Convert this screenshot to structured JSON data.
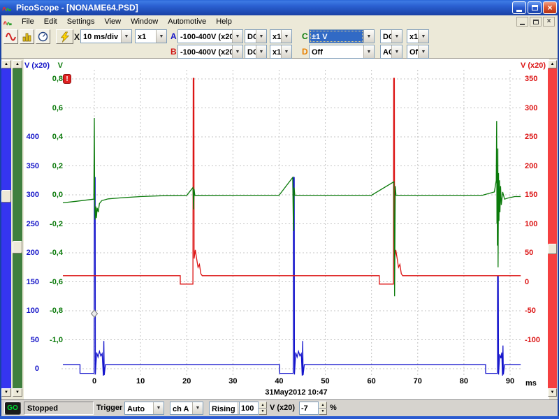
{
  "window": {
    "title": "PicoScope - [NONAME64.PSD]"
  },
  "menu": {
    "items": [
      "File",
      "Edit",
      "Settings",
      "View",
      "Window",
      "Automotive",
      "Help"
    ]
  },
  "icons": {
    "close": "×",
    "dropdown": "▼",
    "spin_up": "▲",
    "spin_down": "▼",
    "scroll_up": "▲",
    "scroll_down": "▼",
    "warning": "!",
    "capture_suffix": "X"
  },
  "toolbar": {
    "timebase": "10 ms/div",
    "timebase_mult": "x1",
    "channels": [
      {
        "id": "A",
        "color": "#1414c8",
        "range": "-100-400V (x20)",
        "coupling": "DC",
        "probe": "x1",
        "selected": false
      },
      {
        "id": "B",
        "color": "#d01414",
        "range": "-100-400V (x20)",
        "coupling": "DC",
        "probe": "x1",
        "selected": false
      },
      {
        "id": "C",
        "color": "#0a7a0a",
        "range": "±1 V",
        "coupling": "DC",
        "probe": "x1",
        "selected": true
      },
      {
        "id": "D",
        "color": "#e88000",
        "range": "Off",
        "coupling": "AC",
        "probe": "Off",
        "selected": false
      }
    ]
  },
  "statusbar": {
    "go_label": "GO",
    "state": "Stopped",
    "trigger_label": "Trigger",
    "trigger_mode": "Auto",
    "trigger_source": "ch A",
    "trigger_edge": "Rising",
    "trigger_level": "100",
    "trigger_level_unit": "V (x20)",
    "pre_trigger": "-7",
    "pre_trigger_unit": "%"
  },
  "plot": {
    "date_label": "31May2012  10:47"
  },
  "chart_data": {
    "type": "line",
    "title": "",
    "x_axis": {
      "label": "ms",
      "ticks": [
        0,
        10,
        20,
        30,
        40,
        50,
        60,
        70,
        80,
        90
      ],
      "range": [
        -6.8,
        92.3
      ]
    },
    "axes": {
      "left_blue": {
        "label": "V (x20)",
        "color": "#1414c8",
        "tick_labels": [
          "400",
          "350",
          "300",
          "250",
          "200",
          "150",
          "100",
          "50",
          "0"
        ],
        "tick_values": [
          400,
          350,
          300,
          250,
          200,
          150,
          100,
          50,
          0
        ],
        "value_at_div0": 500,
        "units_per_div": 50
      },
      "left_green": {
        "label": "V",
        "color": "#0a7a0a",
        "tick_labels": [
          "0,8",
          "0,6",
          "0,4",
          "0,2",
          "0,0",
          "-0,2",
          "-0,4",
          "-0,6",
          "-0,8",
          "-1,0"
        ],
        "tick_values": [
          0.8,
          0.6,
          0.4,
          0.2,
          0,
          -0.2,
          -0.4,
          -0.6,
          -0.8,
          -1.0
        ],
        "value_at_div0": 0.8,
        "units_per_div": 0.2
      },
      "right_red": {
        "label": "V (x20)",
        "color": "#dc1414",
        "tick_labels": [
          "350",
          "300",
          "250",
          "200",
          "150",
          "100",
          "50",
          "0",
          "-50",
          "-100"
        ],
        "tick_values": [
          350,
          300,
          250,
          200,
          150,
          100,
          50,
          0,
          -50,
          -100
        ],
        "value_at_div0": 350,
        "units_per_div": 50
      }
    },
    "grid": {
      "color": "#c4c4c4",
      "style": "dotted"
    },
    "trigger_marker": {
      "t": 0,
      "value": 95,
      "axis": "left_blue"
    },
    "series": [
      {
        "name": "Channel A",
        "axis": "left_blue",
        "color": "#1414cc",
        "points": [
          [
            -6.8,
            7
          ],
          [
            -3.1,
            7
          ],
          [
            -3.1,
            -8
          ],
          [
            -0.05,
            -8
          ],
          [
            0,
            330
          ],
          [
            0.18,
            330
          ],
          [
            0.22,
            -10
          ],
          [
            0.5,
            28
          ],
          [
            0.8,
            20
          ],
          [
            1.1,
            30
          ],
          [
            1.4,
            22
          ],
          [
            1.7,
            26
          ],
          [
            1.95,
            -12
          ],
          [
            2.05,
            48
          ],
          [
            2.15,
            -11
          ],
          [
            2.4,
            7
          ],
          [
            40.1,
            7
          ],
          [
            40.1,
            -8
          ],
          [
            43.05,
            -8
          ],
          [
            43.1,
            330
          ],
          [
            43.28,
            330
          ],
          [
            43.32,
            -10
          ],
          [
            43.6,
            28
          ],
          [
            43.9,
            20
          ],
          [
            44.2,
            30
          ],
          [
            44.5,
            22
          ],
          [
            44.8,
            26
          ],
          [
            45.0,
            -12
          ],
          [
            45.1,
            48
          ],
          [
            45.2,
            -11
          ],
          [
            45.45,
            7
          ],
          [
            84.7,
            7
          ],
          [
            84.7,
            -8
          ],
          [
            87.25,
            -8
          ],
          [
            87.3,
            160
          ],
          [
            87.45,
            160
          ],
          [
            87.5,
            -10
          ],
          [
            87.75,
            25
          ],
          [
            88.0,
            18
          ],
          [
            88.2,
            28
          ],
          [
            88.35,
            -12
          ],
          [
            88.45,
            40
          ],
          [
            88.55,
            -10
          ],
          [
            88.8,
            7
          ],
          [
            92.3,
            7
          ]
        ]
      },
      {
        "name": "Channel B",
        "axis": "right_red",
        "color": "#dc1414",
        "points": [
          [
            -6.8,
            10.5
          ],
          [
            18.6,
            10.5
          ],
          [
            18.6,
            -4
          ],
          [
            21.35,
            -4
          ],
          [
            21.4,
            351
          ],
          [
            21.55,
            351
          ],
          [
            21.6,
            40
          ],
          [
            21.85,
            55
          ],
          [
            22.15,
            40
          ],
          [
            22.45,
            25
          ],
          [
            22.75,
            30
          ],
          [
            23.05,
            14
          ],
          [
            23.35,
            10.5
          ],
          [
            61.7,
            10.5
          ],
          [
            61.7,
            -4
          ],
          [
            64.75,
            -4
          ],
          [
            64.8,
            351
          ],
          [
            64.95,
            351
          ],
          [
            65.0,
            40
          ],
          [
            65.25,
            55
          ],
          [
            65.55,
            40
          ],
          [
            65.85,
            25
          ],
          [
            66.15,
            30
          ],
          [
            66.45,
            14
          ],
          [
            66.75,
            10.5
          ],
          [
            92.3,
            10.5
          ]
        ]
      },
      {
        "name": "Channel C",
        "axis": "left_green",
        "color": "#0a7a0a",
        "points": [
          [
            -6.8,
            -0.055
          ],
          [
            -4,
            -0.045
          ],
          [
            -0.1,
            -0.03
          ],
          [
            0,
            0.53
          ],
          [
            0.08,
            -0.06
          ],
          [
            0.2,
            -0.17
          ],
          [
            0.32,
            -0.08
          ],
          [
            0.45,
            -0.16
          ],
          [
            0.6,
            -0.09
          ],
          [
            0.85,
            -0.12
          ],
          [
            1.1,
            -0.06
          ],
          [
            1.6,
            -0.04
          ],
          [
            3,
            -0.028
          ],
          [
            6,
            -0.02
          ],
          [
            10,
            -0.012
          ],
          [
            15,
            -0.006
          ],
          [
            20,
            -0.004
          ],
          [
            21.35,
            0.05
          ],
          [
            21.5,
            -0.1
          ],
          [
            21.6,
            0.04
          ],
          [
            21.75,
            -0.004
          ],
          [
            30,
            -0.003
          ],
          [
            40,
            -0.003
          ],
          [
            42.95,
            0.12
          ],
          [
            43.1,
            -0.25
          ],
          [
            43.25,
            0.05
          ],
          [
            43.4,
            -0.003
          ],
          [
            50,
            -0.003
          ],
          [
            60,
            -0.003
          ],
          [
            64.85,
            0.09
          ],
          [
            65.0,
            -0.7
          ],
          [
            65.15,
            0.06
          ],
          [
            65.3,
            -0.003
          ],
          [
            75,
            -0.003
          ],
          [
            84,
            -0.003
          ],
          [
            86.6,
            0.02
          ],
          [
            87.0,
            0.1
          ],
          [
            87.1,
            0.51
          ],
          [
            87.15,
            -0.2
          ],
          [
            87.2,
            0.12
          ],
          [
            87.25,
            -0.35
          ],
          [
            87.35,
            0.32
          ],
          [
            87.4,
            -0.5
          ],
          [
            87.5,
            0.15
          ],
          [
            87.6,
            -0.18
          ],
          [
            87.7,
            0.1
          ],
          [
            87.8,
            -0.12
          ],
          [
            87.95,
            0.06
          ],
          [
            88.1,
            -0.07
          ],
          [
            88.4,
            0.02
          ],
          [
            88.8,
            -0.03
          ],
          [
            89.5,
            -0.022
          ],
          [
            91,
            -0.012
          ],
          [
            92.3,
            -0.012
          ]
        ]
      }
    ]
  }
}
